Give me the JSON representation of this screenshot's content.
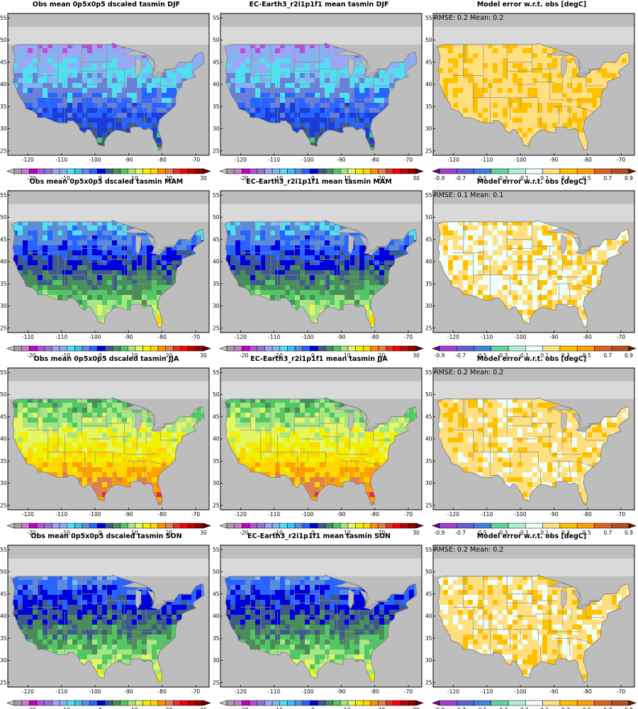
{
  "colorbars": {
    "temperature": {
      "colors": [
        "#c8c8c8",
        "#ab98ab",
        "#c67ec6",
        "#c400c4",
        "#b452d7",
        "#9370db",
        "#a3a3f5",
        "#82b4f0",
        "#50e0f0",
        "#3cc0f0",
        "#5a8cdc",
        "#2864ff",
        "#0000dc",
        "#3c5a8c",
        "#4a8c5a",
        "#51c864",
        "#a5e682",
        "#e6f564",
        "#f0f000",
        "#ffd700",
        "#ff9000",
        "#e08050",
        "#e03030",
        "#ff0000",
        "#c00000",
        "#900000",
        "#5a0000"
      ],
      "labels": [
        "-20",
        "-10",
        "0",
        "10",
        "20",
        "30"
      ]
    },
    "error": {
      "colors": [
        "#7000a0",
        "#a040d0",
        "#6060d0",
        "#4080e0",
        "#5fd5a0",
        "#b0f0d0",
        "#f0fff8",
        "#ffe080",
        "#ffc000",
        "#ffa000",
        "#e06020",
        "#b05020",
        "#602000"
      ],
      "labels": [
        "-0.9",
        "-0.7",
        "-0.5",
        "-0.3",
        "-0.1",
        "0.1",
        "0.3",
        "0.5",
        "0.7",
        "0.9"
      ]
    }
  },
  "axes": {
    "x_ticks": [
      "-120",
      "-110",
      "-100",
      "-90",
      "-80",
      "-70"
    ],
    "y_ticks": [
      "25",
      "30",
      "35",
      "40",
      "45",
      "50",
      "55"
    ]
  },
  "rows": [
    {
      "season": "DJF",
      "panels": [
        {
          "title": "Obs mean 0p5x0p5 dscaled tasmin DJF",
          "type": "temperature",
          "palette": [
            "#c200c2",
            "#b452d7",
            "#a3a3f5",
            "#82b4f0",
            "#50e0f0",
            "#6a7fd8",
            "#2864ff",
            "#1a3cd8",
            "#3c5a8c",
            "#51c864"
          ]
        },
        {
          "title": "EC-Earth3_r2i1p1f1 mean tasmin DJF",
          "type": "temperature",
          "palette": [
            "#c200c2",
            "#b452d7",
            "#a3a3f5",
            "#82b4f0",
            "#50e0f0",
            "#6a7fd8",
            "#2864ff",
            "#1a3cd8",
            "#3c5a8c",
            "#51c864"
          ]
        },
        {
          "title": "Model error w.r.t. obs [degC]",
          "type": "error",
          "stats": "RMSE: 0.2  Mean: 0.2",
          "palette": [
            "#ffe080",
            "#ffc000",
            "#ffe080",
            "#ffe080",
            "#ffc000",
            "#ffe080"
          ]
        }
      ]
    },
    {
      "season": "MAM",
      "panels": [
        {
          "title": "Obs mean 0p5x0p5 dscaled tasmin MAM",
          "type": "temperature",
          "palette": [
            "#82b4f0",
            "#a3a3f5",
            "#50e0f0",
            "#5a8cdc",
            "#2864ff",
            "#0000dc",
            "#3c5a8c",
            "#4a8c5a",
            "#51c864",
            "#a5e682",
            "#e6f564",
            "#ffd700"
          ]
        },
        {
          "title": "EC-Earth3_r2i1p1f1 mean tasmin MAM",
          "type": "temperature",
          "palette": [
            "#82b4f0",
            "#a3a3f5",
            "#50e0f0",
            "#5a8cdc",
            "#2864ff",
            "#0000dc",
            "#3c5a8c",
            "#4a8c5a",
            "#51c864",
            "#a5e682",
            "#e6f564",
            "#ffd700"
          ]
        },
        {
          "title": "Model error w.r.t. obs [degC]",
          "type": "error",
          "stats": "RMSE: 0.1  Mean: 0.1",
          "palette": [
            "#ffe080",
            "#f0fff8",
            "#ffe080",
            "#f0fff8",
            "#ffc000"
          ]
        }
      ]
    },
    {
      "season": "JJA",
      "panels": [
        {
          "title": "Obs mean 0p5x0p5 dscaled tasmin JJA",
          "type": "temperature",
          "palette": [
            "#2864ff",
            "#4a8c5a",
            "#51c864",
            "#a5e682",
            "#e6f564",
            "#f0f000",
            "#ffd700",
            "#ffa000",
            "#e08050",
            "#e03030"
          ]
        },
        {
          "title": "EC-Earth3_r2i1p1f1 mean tasmin JJA",
          "type": "temperature",
          "palette": [
            "#2864ff",
            "#4a8c5a",
            "#51c864",
            "#a5e682",
            "#e6f564",
            "#f0f000",
            "#ffd700",
            "#ffa000",
            "#e08050",
            "#e03030"
          ]
        },
        {
          "title": "Model error w.r.t. obs [degC]",
          "type": "error",
          "stats": "RMSE: 0.2  Mean: 0.2",
          "palette": [
            "#ffe080",
            "#ffe080",
            "#f0fff8",
            "#ffe080",
            "#ffc000"
          ]
        }
      ]
    },
    {
      "season": "SON",
      "panels": [
        {
          "title": "Obs mean 0p5x0p5 dscaled tasmin SON",
          "type": "temperature",
          "palette": [
            "#a3a3f5",
            "#82b4f0",
            "#5a8cdc",
            "#2864ff",
            "#0000dc",
            "#3c5a8c",
            "#4a8c5a",
            "#51c864",
            "#a5e682",
            "#e6f564",
            "#f0f000"
          ]
        },
        {
          "title": "EC-Earth3_r2i1p1f1 mean tasmin SON",
          "type": "temperature",
          "palette": [
            "#a3a3f5",
            "#82b4f0",
            "#5a8cdc",
            "#2864ff",
            "#0000dc",
            "#3c5a8c",
            "#4a8c5a",
            "#51c864",
            "#a5e682",
            "#e6f564",
            "#f0f000"
          ]
        },
        {
          "title": "Model error w.r.t. obs [degC]",
          "type": "error",
          "stats": "RMSE: 0.2  Mean: 0.2",
          "palette": [
            "#ffe080",
            "#f0fff8",
            "#ffe080",
            "#ffc000",
            "#ffe080"
          ]
        }
      ]
    }
  ]
}
